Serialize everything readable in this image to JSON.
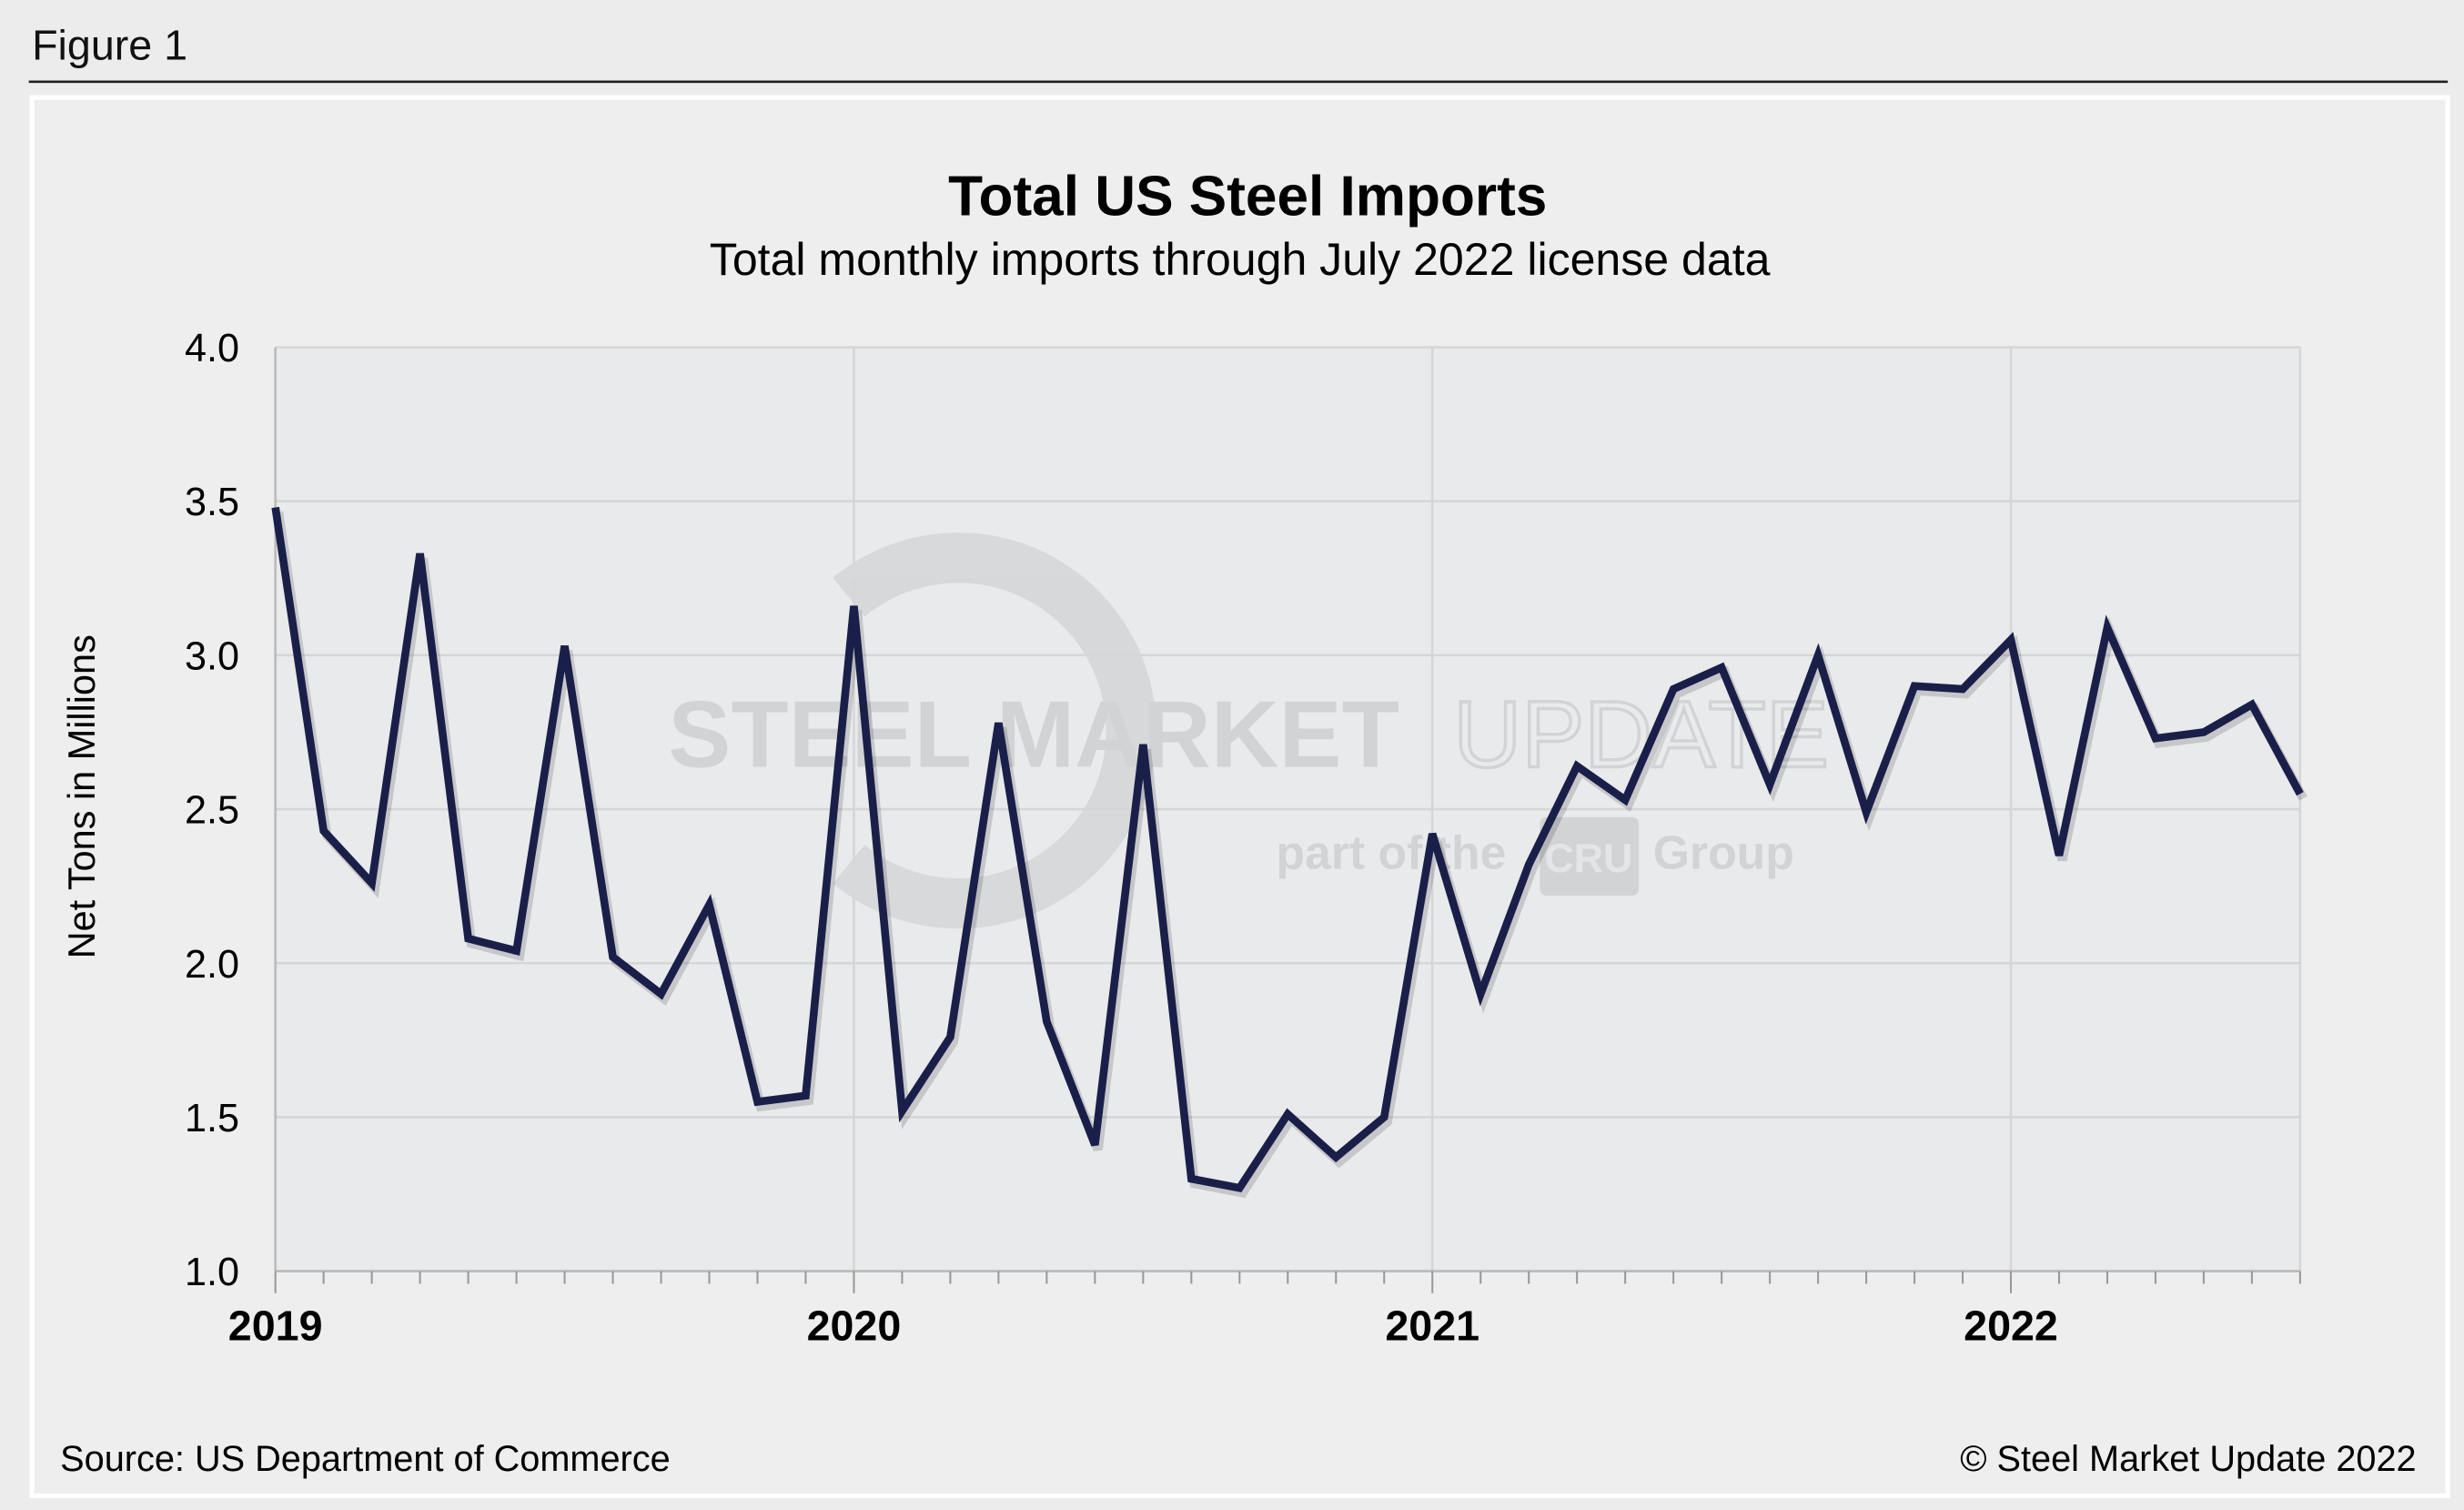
{
  "figure_label": "Figure 1",
  "source": "Source: US Department of Commerce",
  "copyright": "© Steel Market Update 2022",
  "watermark": {
    "line1_bold": "STEEL MARKET",
    "line1_light": "UPDATE",
    "line2_pre": "part of the",
    "line2_logo": "CRU",
    "line2_post": "Group"
  },
  "colors": {
    "line": "#1a1f4a",
    "plot_bg": "#e9eaec",
    "panel_bg": "#eeeeee",
    "grid": "#d6d6d6"
  },
  "chart_data": {
    "type": "line",
    "title": "Total US Steel Imports",
    "subtitle": "Total monthly imports through July 2022 license data",
    "xlabel": "",
    "ylabel": "Net Tons in Millions",
    "ylim": [
      1.0,
      4.0
    ],
    "yticks": [
      "1.0",
      "1.5",
      "2.0",
      "2.5",
      "3.0",
      "3.5",
      "4.0"
    ],
    "xticks": [
      "2019",
      "2020",
      "2021",
      "2022"
    ],
    "grid": true,
    "x_start": "2019-01",
    "x_end": "2022-07",
    "series": [
      {
        "values": [
          3.48,
          2.43,
          2.26,
          3.33,
          2.08,
          2.04,
          3.03,
          2.02,
          1.9,
          2.19,
          1.55,
          1.57,
          3.16,
          1.52,
          1.76,
          2.78,
          1.81,
          1.41,
          2.71,
          1.3,
          1.27,
          1.51,
          1.37,
          1.5,
          2.42,
          1.9,
          2.32,
          2.64,
          2.53,
          2.89,
          2.96,
          2.58,
          3.0,
          2.49,
          2.9,
          2.89,
          3.05,
          2.35,
          3.09,
          2.73,
          2.75,
          2.84,
          2.55
        ]
      }
    ]
  }
}
